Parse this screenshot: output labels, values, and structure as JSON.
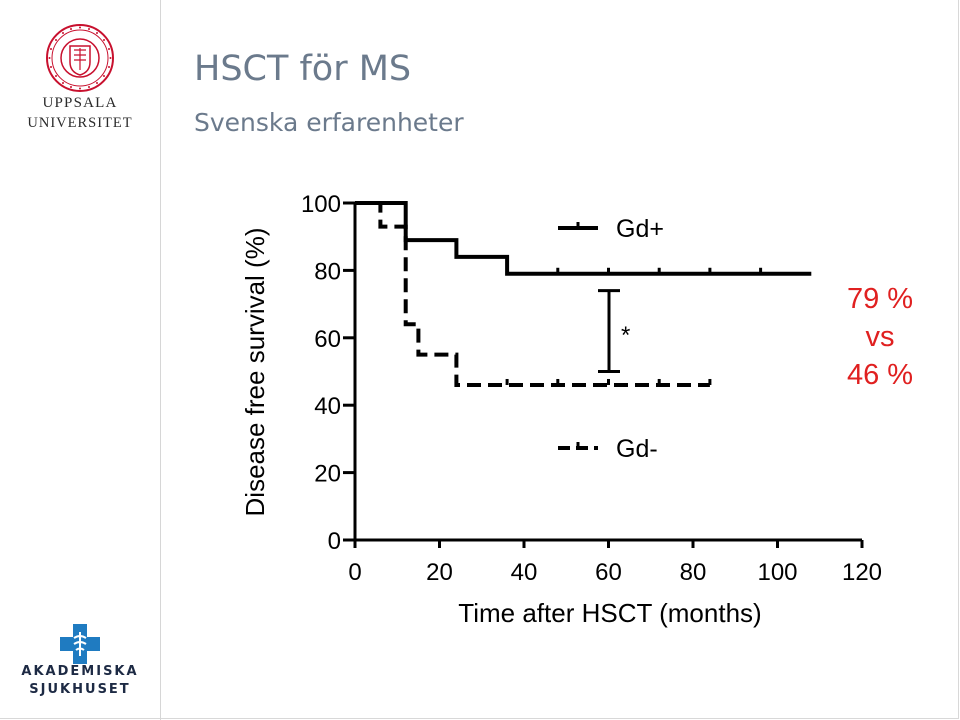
{
  "university": {
    "line1": "UPPSALA",
    "line2": "UNIVERSITET"
  },
  "slide": {
    "title": "HSCT för MS",
    "subtitle": "Svenska erfarenheter"
  },
  "hospital": {
    "line1": "AKADEMISKA",
    "line2": "SJUKHUSET"
  },
  "colors": {
    "title": "#6b7a8c",
    "highlight": "#e02020",
    "uu_red": "#c8102e",
    "aka_blue": "#1f7bc1"
  },
  "annotation": {
    "line1": "79 %",
    "line2": "vs",
    "line3": "46 %"
  },
  "chart_data": {
    "type": "line",
    "xlabel": "Time after HSCT (months)",
    "ylabel": "Disease free survival (%)",
    "xlim": [
      0,
      120
    ],
    "ylim": [
      0,
      100
    ],
    "xticks": [
      0,
      20,
      40,
      60,
      80,
      100,
      120
    ],
    "yticks": [
      0,
      20,
      40,
      60,
      80,
      100
    ],
    "grid": false,
    "legend_placement": "inside",
    "significance_marker": "*",
    "series": [
      {
        "name": "Gd+",
        "style": "solid",
        "steps": [
          [
            0,
            100
          ],
          [
            12,
            100
          ],
          [
            12,
            89
          ],
          [
            24,
            89
          ],
          [
            24,
            84
          ],
          [
            36,
            84
          ],
          [
            36,
            79
          ],
          [
            108,
            79
          ]
        ],
        "censor_x": [
          48,
          60,
          72,
          84,
          96
        ]
      },
      {
        "name": "Gd-",
        "style": "dashed",
        "steps": [
          [
            0,
            100
          ],
          [
            6,
            100
          ],
          [
            6,
            93
          ],
          [
            12,
            93
          ],
          [
            12,
            64
          ],
          [
            15,
            64
          ],
          [
            15,
            55
          ],
          [
            24,
            55
          ],
          [
            24,
            46
          ],
          [
            84,
            46
          ]
        ],
        "censor_x": [
          36,
          48,
          60,
          72,
          84
        ]
      }
    ]
  }
}
